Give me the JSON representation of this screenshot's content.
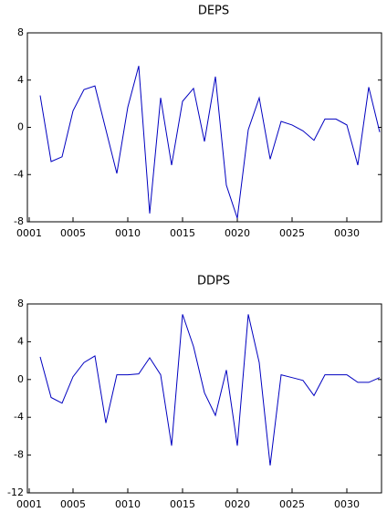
{
  "chart_data": [
    {
      "type": "line",
      "title": "DEPS",
      "categories": [
        "0001",
        null,
        null,
        null,
        "0005",
        null,
        null,
        null,
        null,
        "0010",
        null,
        null,
        null,
        null,
        "0015",
        null,
        null,
        null,
        null,
        "0020",
        null,
        null,
        null,
        null,
        "0025",
        null,
        null,
        null,
        null,
        "0030",
        null,
        null,
        null
      ],
      "values": [
        null,
        2.7,
        -2.9,
        -2.5,
        1.4,
        3.2,
        3.5,
        -0.2,
        -3.9,
        1.7,
        5.2,
        -7.3,
        2.5,
        -3.2,
        2.2,
        3.3,
        -1.2,
        4.3,
        -4.9,
        -7.7,
        -0.2,
        2.5,
        -2.7,
        0.5,
        0.2,
        -0.3,
        -1.1,
        0.7,
        0.7,
        0.2,
        -3.2,
        3.4,
        -0.4
      ],
      "color": "#0000c0",
      "ylim": [
        -8,
        8
      ],
      "yticks": [
        -8,
        -4,
        0,
        4,
        8
      ]
    },
    {
      "type": "line",
      "title": "DDPS",
      "categories": [
        "0001",
        null,
        null,
        null,
        "0005",
        null,
        null,
        null,
        null,
        "0010",
        null,
        null,
        null,
        null,
        "0015",
        null,
        null,
        null,
        null,
        "0020",
        null,
        null,
        null,
        null,
        "0025",
        null,
        null,
        null,
        null,
        "0030",
        null,
        null,
        null
      ],
      "values": [
        null,
        2.4,
        -1.9,
        -2.5,
        0.3,
        1.8,
        2.5,
        -4.6,
        0.5,
        0.5,
        0.6,
        2.3,
        0.5,
        -7.0,
        6.9,
        3.5,
        -1.4,
        -3.8,
        1.0,
        -7.0,
        6.9,
        1.8,
        -9.1,
        0.5,
        0.2,
        -0.1,
        -1.7,
        0.5,
        0.5,
        0.5,
        -0.3,
        -0.3,
        0.2
      ],
      "color": "#0000c0",
      "ylim": [
        -12,
        8
      ],
      "yticks": [
        -12,
        -8,
        -4,
        0,
        4,
        8
      ]
    }
  ]
}
